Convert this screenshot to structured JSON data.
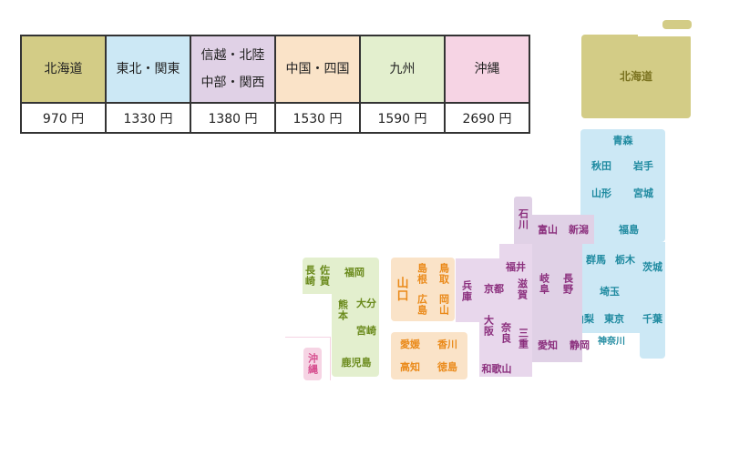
{
  "colors": {
    "hokkaido": "#d3cc86",
    "tohoku_kanto": "#cce8f5",
    "shinetsu_hokuriku_chubu_kansai": "#e0d1e6",
    "chugoku_shikoku": "#fae3c8",
    "kyushu": "#e3efce",
    "okinawa": "#f6d4e4"
  },
  "table": {
    "headers": [
      {
        "line1": "北海道",
        "line2": ""
      },
      {
        "line1": "東北・関東",
        "line2": ""
      },
      {
        "line1": "信越・北陸",
        "line2": "中部・関西"
      },
      {
        "line1": "中国・四国",
        "line2": ""
      },
      {
        "line1": "九州",
        "line2": ""
      },
      {
        "line1": "沖縄",
        "line2": ""
      }
    ],
    "prices": [
      "970 円",
      "1330 円",
      "1380 円",
      "1530 円",
      "1590 円",
      "2690 円"
    ]
  },
  "map": {
    "hokkaido": "北海道",
    "aomori": "青森",
    "akita": "秋田",
    "iwate": "岩手",
    "yamagata": "山形",
    "miyagi": "宮城",
    "fukushima": "福島",
    "niigata": "新潟",
    "ishikawa": "石川",
    "toyama": "富山",
    "gunma": "群馬",
    "tochigi": "栃木",
    "ibaraki": "茨城",
    "fukui": "福井",
    "nagano": "長野",
    "gifu": "岐阜",
    "saitama": "埼玉",
    "shiga": "滋賀",
    "kyoto": "京都",
    "hyogo": "兵庫",
    "yamanashi": "山梨",
    "tokyo": "東京",
    "chiba": "千葉",
    "kanagawa": "神奈川",
    "shizuoka": "静岡",
    "aichi": "愛知",
    "mie": "三重",
    "nara": "奈良",
    "osaka": "大阪",
    "wakayama": "和歌山",
    "tottori": "鳥取",
    "shimane": "島根",
    "okayama": "岡山",
    "hiroshima": "広島",
    "yamaguchi": "山口",
    "ehime": "愛媛",
    "kagawa": "香川",
    "kochi": "高知",
    "tokushima": "徳島",
    "fukuoka": "福岡",
    "saga": "佐賀",
    "nagasaki": "長崎",
    "kumamoto": "熊本",
    "oita": "大分",
    "miyazaki": "宮崎",
    "kagoshima": "鹿児島",
    "okinawa": "沖縄"
  }
}
